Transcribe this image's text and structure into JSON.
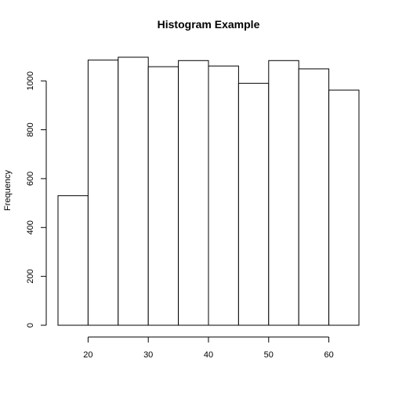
{
  "chart_data": {
    "type": "bar",
    "title": "Histogram Example",
    "xlabel": "",
    "ylabel": "Frequency",
    "bins": [
      [
        15,
        20
      ],
      [
        20,
        25
      ],
      [
        25,
        30
      ],
      [
        30,
        35
      ],
      [
        35,
        40
      ],
      [
        40,
        45
      ],
      [
        45,
        50
      ],
      [
        50,
        55
      ],
      [
        55,
        60
      ],
      [
        60,
        65
      ]
    ],
    "values": [
      530,
      1085,
      1097,
      1058,
      1083,
      1061,
      990,
      1083,
      1049,
      962
    ],
    "x_ticks": [
      20,
      30,
      40,
      50,
      60
    ],
    "y_ticks": [
      0,
      200,
      400,
      600,
      800,
      1000
    ],
    "xlim": [
      15,
      65
    ],
    "ylim": [
      0,
      1100
    ],
    "grid": false
  }
}
